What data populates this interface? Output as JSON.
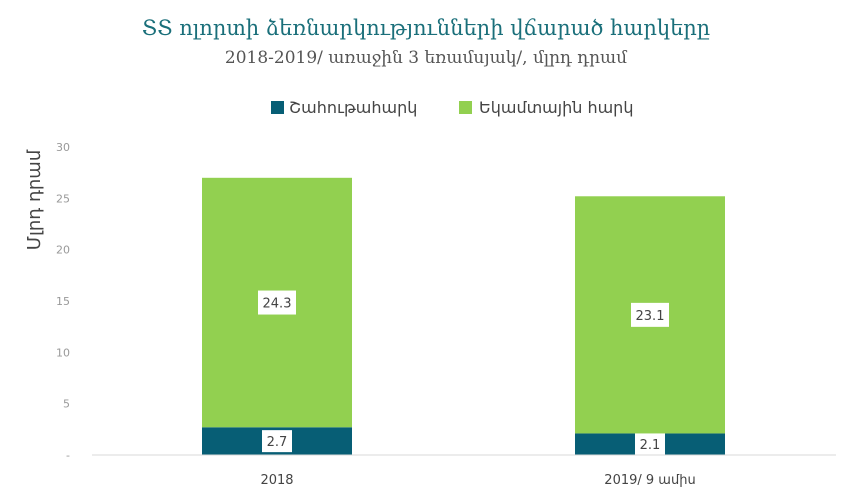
{
  "chart_data": {
    "type": "bar",
    "stacked": true,
    "title": "ՏՏ ոլորտի ձեռնարկությունների վճարած հարկերը",
    "subtitle": "2018-2019/ առաջին 3 եռամսյակ/, մլրդ դրամ",
    "ylabel": "Մլրդ դրամ",
    "xlabel": "",
    "categories": [
      "2018",
      "2019/ 9 ամիս"
    ],
    "series": [
      {
        "name": "Շահութահարկ",
        "values": [
          2.7,
          2.1
        ],
        "color": "#075e75",
        "labels": [
          "2.7",
          "2.1"
        ]
      },
      {
        "name": "Եկամտային հարկ",
        "values": [
          24.3,
          23.1
        ],
        "color": "#92d050",
        "labels": [
          "24.3",
          "23.1"
        ]
      }
    ],
    "ylim": [
      0,
      30
    ],
    "yticks": [
      {
        "value": 0,
        "label": "-"
      },
      {
        "value": 5,
        "label": "5"
      },
      {
        "value": 10,
        "label": "10"
      },
      {
        "value": 15,
        "label": "15"
      },
      {
        "value": 20,
        "label": "20"
      },
      {
        "value": 25,
        "label": "25"
      },
      {
        "value": 30,
        "label": "30"
      }
    ],
    "legend_position": "top",
    "grid": false
  }
}
